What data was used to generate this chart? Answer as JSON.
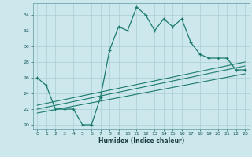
{
  "xlabel": "Humidex (Indice chaleur)",
  "ylabel": "",
  "bg_color": "#cde8ec",
  "grid_color": "#aacdd4",
  "line_color": "#1a7a6e",
  "xlim": [
    -0.5,
    23.5
  ],
  "ylim": [
    19.5,
    35.5
  ],
  "xticks": [
    0,
    1,
    2,
    3,
    4,
    5,
    6,
    7,
    8,
    9,
    10,
    11,
    12,
    13,
    14,
    15,
    16,
    17,
    18,
    19,
    20,
    21,
    22,
    23
  ],
  "yticks": [
    20,
    22,
    24,
    26,
    28,
    30,
    32,
    34
  ],
  "line1_x": [
    0,
    1,
    2,
    3,
    4,
    5,
    6,
    7,
    8,
    9,
    10,
    11,
    12,
    13,
    14,
    15,
    16,
    17,
    18,
    19,
    20,
    21,
    22,
    23
  ],
  "line1_y": [
    26.0,
    25.0,
    22.0,
    22.0,
    22.0,
    20.0,
    20.0,
    23.5,
    29.5,
    32.5,
    32.0,
    35.0,
    34.0,
    32.0,
    33.5,
    32.5,
    33.5,
    30.5,
    29.0,
    28.5,
    28.5,
    28.5,
    27.0,
    27.0
  ],
  "line2_x": [
    0,
    23
  ],
  "line2_y": [
    22.0,
    27.5
  ],
  "line3_x": [
    0,
    23
  ],
  "line3_y": [
    22.5,
    28.0
  ],
  "line4_x": [
    0,
    23
  ],
  "line4_y": [
    21.5,
    26.5
  ]
}
